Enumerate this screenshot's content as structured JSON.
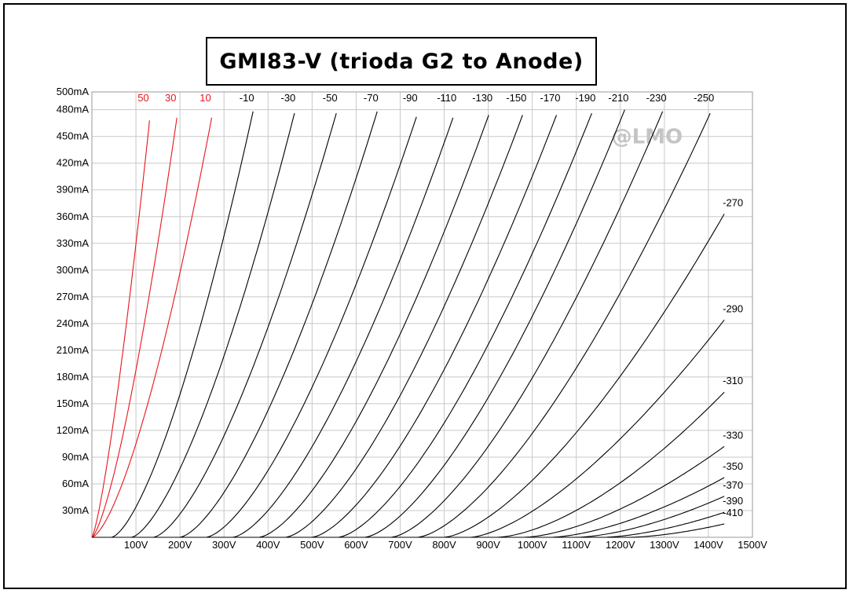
{
  "chart_data": {
    "type": "line",
    "title": "GMI83-V (trioda G2 to Anode)",
    "watermark": "@LMO",
    "xlabel": "",
    "ylabel": "",
    "xlim": [
      0,
      1500
    ],
    "ylim": [
      0,
      500
    ],
    "grid": true,
    "x_ticks": [
      {
        "value": 100,
        "label": "100V"
      },
      {
        "value": 200,
        "label": "200V"
      },
      {
        "value": 300,
        "label": "300V"
      },
      {
        "value": 400,
        "label": "400V"
      },
      {
        "value": 500,
        "label": "500V"
      },
      {
        "value": 600,
        "label": "600V"
      },
      {
        "value": 700,
        "label": "700V"
      },
      {
        "value": 800,
        "label": "800V"
      },
      {
        "value": 900,
        "label": "900V"
      },
      {
        "value": 1000,
        "label": "1000V"
      },
      {
        "value": 1100,
        "label": "1100V"
      },
      {
        "value": 1200,
        "label": "1200V"
      },
      {
        "value": 1300,
        "label": "1300V"
      },
      {
        "value": 1400,
        "label": "1400V"
      },
      {
        "value": 1500,
        "label": "1500V"
      }
    ],
    "y_ticks": [
      {
        "value": 30,
        "label": "30mA"
      },
      {
        "value": 60,
        "label": "60mA"
      },
      {
        "value": 90,
        "label": "90mA"
      },
      {
        "value": 120,
        "label": "120mA"
      },
      {
        "value": 150,
        "label": "150mA"
      },
      {
        "value": 180,
        "label": "180mA"
      },
      {
        "value": 210,
        "label": "210mA"
      },
      {
        "value": 240,
        "label": "240mA"
      },
      {
        "value": 270,
        "label": "270mA"
      },
      {
        "value": 300,
        "label": "300mA"
      },
      {
        "value": 330,
        "label": "330mA"
      },
      {
        "value": 360,
        "label": "360mA"
      },
      {
        "value": 390,
        "label": "390mA"
      },
      {
        "value": 420,
        "label": "420mA"
      },
      {
        "value": 450,
        "label": "450mA"
      },
      {
        "value": 480,
        "label": "480mA"
      },
      {
        "value": 500,
        "label": "500mA"
      }
    ],
    "colors": {
      "positive_grid": "#e8141c",
      "negative_grid": "#000000",
      "grid": "#c8c8c8"
    },
    "series": [
      {
        "name": "50",
        "color": "#e8141c",
        "v0": 0,
        "p": 1.3,
        "end": {
          "x": 131,
          "y": 468
        }
      },
      {
        "name": "30",
        "color": "#e8141c",
        "v0": 0,
        "p": 1.4,
        "end": {
          "x": 193,
          "y": 471
        }
      },
      {
        "name": "10",
        "color": "#e8141c",
        "v0": 0,
        "p": 1.5,
        "end": {
          "x": 272,
          "y": 471
        }
      },
      {
        "name": "-10",
        "color": "#000000",
        "v0": 45,
        "p": 1.5,
        "end": {
          "x": 366,
          "y": 478
        }
      },
      {
        "name": "-30",
        "color": "#000000",
        "v0": 90,
        "p": 1.5,
        "end": {
          "x": 460,
          "y": 476
        }
      },
      {
        "name": "-50",
        "color": "#000000",
        "v0": 140,
        "p": 1.5,
        "end": {
          "x": 555,
          "y": 476
        }
      },
      {
        "name": "-70",
        "color": "#000000",
        "v0": 200,
        "p": 1.5,
        "end": {
          "x": 648,
          "y": 478
        }
      },
      {
        "name": "-90",
        "color": "#000000",
        "v0": 260,
        "p": 1.5,
        "end": {
          "x": 737,
          "y": 472
        }
      },
      {
        "name": "-110",
        "color": "#000000",
        "v0": 320,
        "p": 1.5,
        "end": {
          "x": 820,
          "y": 471
        }
      },
      {
        "name": "-130",
        "color": "#000000",
        "v0": 380,
        "p": 1.5,
        "end": {
          "x": 901,
          "y": 474
        }
      },
      {
        "name": "-150",
        "color": "#000000",
        "v0": 440,
        "p": 1.5,
        "end": {
          "x": 978,
          "y": 474
        }
      },
      {
        "name": "-170",
        "color": "#000000",
        "v0": 500,
        "p": 1.5,
        "end": {
          "x": 1055,
          "y": 474
        }
      },
      {
        "name": "-190",
        "color": "#000000",
        "v0": 560,
        "p": 1.5,
        "end": {
          "x": 1135,
          "y": 476
        }
      },
      {
        "name": "-210",
        "color": "#000000",
        "v0": 620,
        "p": 1.5,
        "end": {
          "x": 1210,
          "y": 480
        }
      },
      {
        "name": "-230",
        "color": "#000000",
        "v0": 680,
        "p": 1.5,
        "end": {
          "x": 1296,
          "y": 478
        }
      },
      {
        "name": "-250",
        "color": "#000000",
        "v0": 740,
        "p": 1.5,
        "end": {
          "x": 1404,
          "y": 476
        }
      },
      {
        "name": "-270",
        "color": "#000000",
        "v0": 800,
        "p": 1.5,
        "end": {
          "x": 1436,
          "y": 363
        }
      },
      {
        "name": "-290",
        "color": "#000000",
        "v0": 860,
        "p": 1.5,
        "end": {
          "x": 1436,
          "y": 244
        }
      },
      {
        "name": "-310",
        "color": "#000000",
        "v0": 920,
        "p": 1.6,
        "end": {
          "x": 1436,
          "y": 163
        }
      },
      {
        "name": "-330",
        "color": "#000000",
        "v0": 980,
        "p": 1.6,
        "end": {
          "x": 1436,
          "y": 102
        }
      },
      {
        "name": "-350",
        "color": "#000000",
        "v0": 1040,
        "p": 1.6,
        "end": {
          "x": 1436,
          "y": 67
        }
      },
      {
        "name": "-370",
        "color": "#000000",
        "v0": 1100,
        "p": 1.6,
        "end": {
          "x": 1436,
          "y": 46
        }
      },
      {
        "name": "-390",
        "color": "#000000",
        "v0": 1160,
        "p": 1.6,
        "end": {
          "x": 1436,
          "y": 28
        }
      },
      {
        "name": "-410",
        "color": "#000000",
        "v0": 1220,
        "p": 1.6,
        "end": {
          "x": 1436,
          "y": 15
        }
      }
    ]
  }
}
